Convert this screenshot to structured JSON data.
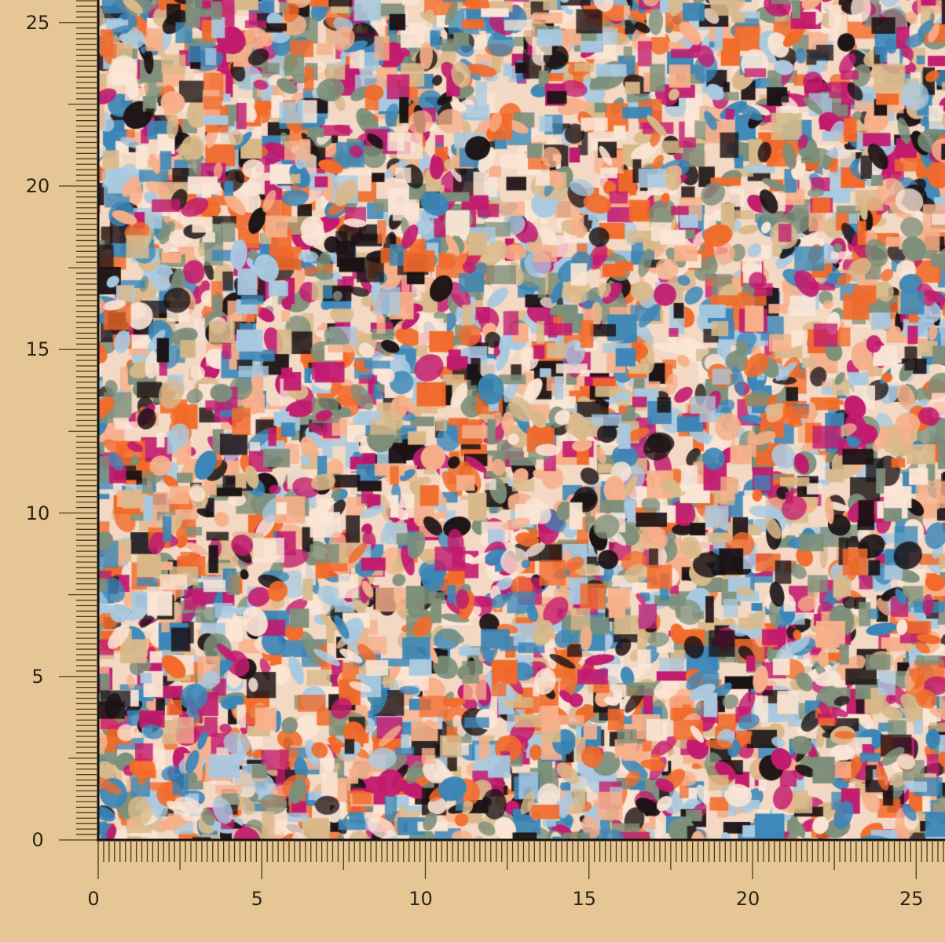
{
  "axes": {
    "x_labels": [
      "0",
      "5",
      "10",
      "15",
      "20",
      "25"
    ],
    "y_labels": [
      "0",
      "5",
      "10",
      "15",
      "20",
      "25"
    ]
  },
  "colors": {
    "background": "#e7c695",
    "ruler_ink": "#4a3a1c",
    "fabric_palette": [
      "#c21a6e",
      "#f26a2a",
      "#1b1214",
      "#3a86b8",
      "#f7b08a",
      "#d9b98a",
      "#a9c9e0",
      "#7d8f7a",
      "#fbe6d6"
    ]
  }
}
